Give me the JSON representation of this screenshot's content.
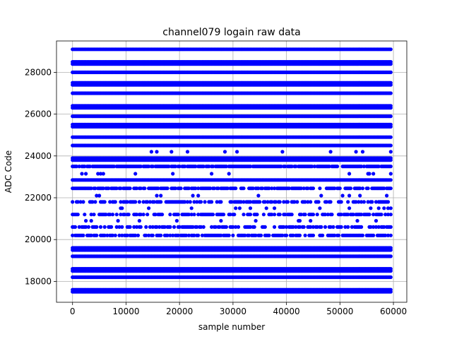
{
  "chart_data": {
    "type": "scatter",
    "title": "channel079 logain raw data",
    "xlabel": "sample number",
    "ylabel": "ADC Code",
    "xlim": [
      -3000,
      62500
    ],
    "ylim": [
      17000,
      29500
    ],
    "x_ticks": [
      0,
      10000,
      20000,
      30000,
      40000,
      50000,
      60000
    ],
    "y_ticks": [
      18000,
      20000,
      22000,
      24000,
      26000,
      28000
    ],
    "grid": true,
    "marker_color": "#0000ff",
    "x_range": [
      0,
      59500
    ],
    "series": [
      {
        "marker": "circle",
        "color": "#0000ff",
        "levels": [
          {
            "y": 29100,
            "density": 1.0
          },
          {
            "y": 28500,
            "density": 1.0
          },
          {
            "y": 28400,
            "density": 1.0
          },
          {
            "y": 28000,
            "density": 1.0
          },
          {
            "y": 27500,
            "density": 1.0
          },
          {
            "y": 27400,
            "density": 1.0
          },
          {
            "y": 27000,
            "density": 1.0
          },
          {
            "y": 26400,
            "density": 1.0
          },
          {
            "y": 26300,
            "density": 1.0
          },
          {
            "y": 25900,
            "density": 1.0
          },
          {
            "y": 25500,
            "density": 1.0
          },
          {
            "y": 25400,
            "density": 1.0
          },
          {
            "y": 24900,
            "density": 1.0
          },
          {
            "y": 24500,
            "density": 1.0
          },
          {
            "y": 24200,
            "density": 0.05
          },
          {
            "y": 23900,
            "density": 1.0
          },
          {
            "y": 23800,
            "density": 1.0
          },
          {
            "y": 23500,
            "density": 0.85
          },
          {
            "y": 23150,
            "density": 0.05
          },
          {
            "y": 22850,
            "density": 1.0
          },
          {
            "y": 22450,
            "density": 0.7
          },
          {
            "y": 22100,
            "density": 0.05
          },
          {
            "y": 21800,
            "density": 0.6
          },
          {
            "y": 21500,
            "density": 0.05
          },
          {
            "y": 21200,
            "density": 0.55
          },
          {
            "y": 20900,
            "density": 0.05
          },
          {
            "y": 20600,
            "density": 0.6
          },
          {
            "y": 20200,
            "density": 0.75
          },
          {
            "y": 19600,
            "density": 1.0
          },
          {
            "y": 19500,
            "density": 1.0
          },
          {
            "y": 19200,
            "density": 1.0
          },
          {
            "y": 18600,
            "density": 1.0
          },
          {
            "y": 18500,
            "density": 1.0
          },
          {
            "y": 18200,
            "density": 1.0
          },
          {
            "y": 17600,
            "density": 1.0
          },
          {
            "y": 17500,
            "density": 1.0
          }
        ]
      }
    ]
  }
}
